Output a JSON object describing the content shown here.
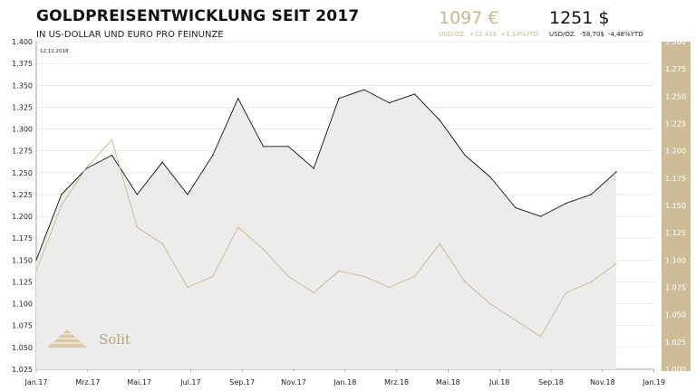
{
  "header": {
    "title": "GOLDPREISENTWICKLUNG SEIT 2017",
    "subtitle": "IN US-DOLLAR UND EURO PRO FEINUNZE"
  },
  "prices": {
    "eur": {
      "value": "1097 €",
      "unit": "USD/OZ.",
      "change_abs": "+12,41$",
      "change_pct": "+1,14%YTD",
      "color": "#c9b58f"
    },
    "usd": {
      "value": "1251 $",
      "unit": "USD/OZ.",
      "change_abs": "-58,70$",
      "change_pct": "-4,48%YTD",
      "color": "#111111"
    }
  },
  "logo": {
    "text": "Solit"
  },
  "chart_data": {
    "type": "line",
    "date_label": "12.12.2018",
    "x_tick_labels": [
      "Jan.17",
      "Mrz.17",
      "Mai.17",
      "Jul.17",
      "Sep.17",
      "Nov.17",
      "Jan.18",
      "Mrz.18",
      "Mai.18",
      "Jul.18",
      "Sep.18",
      "Nov.18",
      "Jan.19"
    ],
    "left_axis": {
      "min": 1.025,
      "max": 1.4,
      "ticks": [
        "1.025",
        "1.050",
        "1.075",
        "1.100",
        "1.125",
        "1.150",
        "1.175",
        "1.200",
        "1.225",
        "1.250",
        "1.275",
        "1.300",
        "1.325",
        "1.350",
        "1.375",
        "1.400"
      ]
    },
    "right_axis": {
      "min": 1.0,
      "max": 1.3,
      "ticks": [
        "1.000",
        "1.025",
        "1.050",
        "1.075",
        "1.100",
        "1.125",
        "1.150",
        "1.175",
        "1.200",
        "1.225",
        "1.250",
        "1.275",
        "1.300"
      ]
    },
    "series": [
      {
        "axis": "left",
        "color": "#111111",
        "fill": "#ececec",
        "x": [
          "2017-01",
          "2017-02",
          "2017-03",
          "2017-04",
          "2017-05",
          "2017-06",
          "2017-07",
          "2017-08",
          "2017-09",
          "2017-10",
          "2017-11",
          "2017-12",
          "2018-01",
          "2018-02",
          "2018-03",
          "2018-04",
          "2018-05",
          "2018-06",
          "2018-07",
          "2018-08",
          "2018-09",
          "2018-10",
          "2018-11",
          "2018-12"
        ],
        "values": [
          1150,
          1225,
          1255,
          1270,
          1225,
          1262,
          1225,
          1270,
          1335,
          1280,
          1280,
          1255,
          1335,
          1345,
          1330,
          1340,
          1310,
          1270,
          1245,
          1210,
          1200,
          1215,
          1225,
          1251
        ]
      },
      {
        "axis": "right",
        "color": "#c9b58f",
        "x": [
          "2017-01",
          "2017-02",
          "2017-03",
          "2017-04",
          "2017-05",
          "2017-06",
          "2017-07",
          "2017-08",
          "2017-09",
          "2017-10",
          "2017-11",
          "2017-12",
          "2018-01",
          "2018-02",
          "2018-03",
          "2018-04",
          "2018-05",
          "2018-06",
          "2018-07",
          "2018-08",
          "2018-09",
          "2018-10",
          "2018-11",
          "2018-12"
        ],
        "values": [
          1090,
          1150,
          1185,
          1210,
          1130,
          1115,
          1075,
          1085,
          1130,
          1110,
          1085,
          1070,
          1090,
          1085,
          1075,
          1085,
          1115,
          1080,
          1060,
          1045,
          1030,
          1070,
          1080,
          1097
        ]
      }
    ],
    "grid": "horizontal"
  }
}
